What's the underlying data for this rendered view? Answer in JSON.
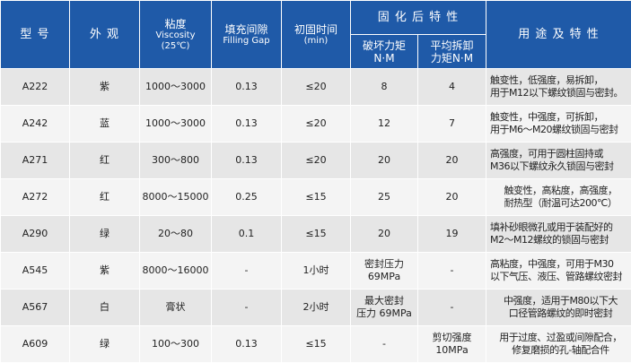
{
  "header": {
    "model": "型 号",
    "appearance": "外 观",
    "viscosity_cn": "粘度",
    "viscosity_en": "Viscosity",
    "viscosity_unit": "(25℃)",
    "gap_cn": "填充间隙",
    "gap_en": "Filling Gap",
    "time_cn": "初固时间",
    "time_unit": "(min)",
    "cure_group": "固 化 后 特 性",
    "breakaway_cn": "破坏力矩",
    "breakaway_unit": "N·M",
    "prevail_cn": "平均拆卸",
    "prevail_unit": "力矩N·M",
    "use": "用 途 及 特 性"
  },
  "rows": [
    {
      "model": "A222",
      "appearance": "紫",
      "viscosity": "1000～3000",
      "gap": "0.13",
      "time": "≤20",
      "breakaway": "8",
      "prevail": "4",
      "use1": "触变性，低强度，易拆卸，",
      "use2": "用于M12以下螺纹锁固与密封。"
    },
    {
      "model": "A242",
      "appearance": "蓝",
      "viscosity": "1000～3000",
      "gap": "0.13",
      "time": "≤20",
      "breakaway": "12",
      "prevail": "7",
      "use1": "触变性，中强度，可拆卸，",
      "use2": "用于M6～M20螺纹锁固与密封"
    },
    {
      "model": "A271",
      "appearance": "红",
      "viscosity": "300～800",
      "gap": "0.13",
      "time": "≤20",
      "breakaway": "20",
      "prevail": "20",
      "use1": "高强度，可用于圆柱固持或",
      "use2": "M36以下螺纹永久锁固与密封"
    },
    {
      "model": "A272",
      "appearance": "红",
      "viscosity": "8000～15000",
      "gap": "0.25",
      "time": "≤15",
      "breakaway": "25",
      "prevail": "20",
      "use1": "触变性，高粘度，高强度，",
      "use2": "耐热型（耐温可达200℃）"
    },
    {
      "model": "A290",
      "appearance": "绿",
      "viscosity": "20～80",
      "gap": "0.1",
      "time": "≤15",
      "breakaway": "20",
      "prevail": "19",
      "use1": "填补砂眼微孔或用于装配好的",
      "use2": "M2～M12螺纹的锁固与密封"
    },
    {
      "model": "A545",
      "appearance": "紫",
      "viscosity": "8000～16000",
      "gap": "-",
      "time": "1小时",
      "breakaway": "密封压力",
      "breakaway2": "69MPa",
      "prevail": "-",
      "use1": "高粘度，中强度，可用于M30",
      "use2": "以下气压、液压、管路螺纹密封"
    },
    {
      "model": "A567",
      "appearance": "白",
      "viscosity": "膏状",
      "gap": "-",
      "time": "2小时",
      "breakaway": "最大密封",
      "breakaway2": "压力 69MPa",
      "prevail": "-",
      "use1": "中强度，适用于M80以下大",
      "use2": "口径管路螺纹的即时密封"
    },
    {
      "model": "A609",
      "appearance": "绿",
      "viscosity": "100～300",
      "gap": "0.13",
      "time": "≤15",
      "breakaway": "-",
      "prevail": "剪切强度",
      "prevail2": "10MPa",
      "use1": "用于过度、过盈或间隙配合，",
      "use2": "修复磨损的孔-轴配合件"
    }
  ]
}
